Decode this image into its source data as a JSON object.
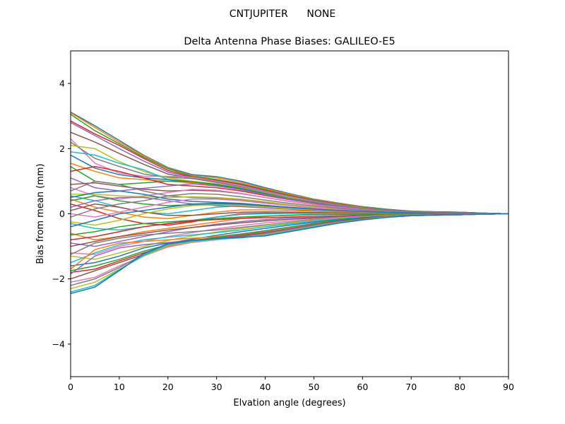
{
  "chart_data": {
    "type": "line",
    "suptitle": "CNTJUPITER      NONE",
    "title": "Delta Antenna Phase Biases: GALILEO-E5",
    "xlabel": "Elvation angle (degrees)",
    "ylabel": "Bias from mean (mm)",
    "xlim": [
      0,
      90
    ],
    "ylim": [
      -5,
      5
    ],
    "xticks": [
      0,
      10,
      20,
      30,
      40,
      50,
      60,
      70,
      80,
      90
    ],
    "yticks": [
      -4,
      -2,
      0,
      2,
      4
    ],
    "grid": false,
    "legend": "none",
    "x": [
      0,
      5,
      10,
      15,
      20,
      25,
      30,
      35,
      40,
      45,
      50,
      55,
      60,
      65,
      70,
      75,
      80,
      85,
      90
    ],
    "colors": [
      "#1f77b4",
      "#ff7f0e",
      "#2ca02c",
      "#d62728",
      "#9467bd",
      "#8c564b",
      "#e377c2",
      "#7f7f7f",
      "#bcbd22",
      "#17becf"
    ],
    "series": [
      {
        "values": [
          3.12,
          2.7,
          2.25,
          1.8,
          1.42,
          1.2,
          1.14,
          1.0,
          0.8,
          0.62,
          0.45,
          0.33,
          0.22,
          0.14,
          0.08,
          0.06,
          0.05,
          0.02,
          0.0
        ]
      },
      {
        "values": [
          3.1,
          2.65,
          2.2,
          1.78,
          1.4,
          1.17,
          1.1,
          0.96,
          0.77,
          0.6,
          0.44,
          0.32,
          0.21,
          0.13,
          0.08,
          0.06,
          0.05,
          0.02,
          0.0
        ]
      },
      {
        "values": [
          3.05,
          2.55,
          2.15,
          1.74,
          1.38,
          1.15,
          1.05,
          0.92,
          0.74,
          0.57,
          0.42,
          0.3,
          0.2,
          0.13,
          0.08,
          0.06,
          0.05,
          0.02,
          0.0
        ]
      },
      {
        "values": [
          2.85,
          2.45,
          2.1,
          1.7,
          1.33,
          1.12,
          1.02,
          0.9,
          0.72,
          0.55,
          0.41,
          0.29,
          0.19,
          0.12,
          0.07,
          0.06,
          0.04,
          0.02,
          0.0
        ]
      },
      {
        "values": [
          2.8,
          2.4,
          2.0,
          1.62,
          1.28,
          1.1,
          1.0,
          0.88,
          0.7,
          0.54,
          0.4,
          0.28,
          0.18,
          0.12,
          0.07,
          0.05,
          0.04,
          0.02,
          0.0
        ]
      },
      {
        "values": [
          2.5,
          2.2,
          1.85,
          1.52,
          1.22,
          1.08,
          0.98,
          0.85,
          0.68,
          0.52,
          0.38,
          0.27,
          0.18,
          0.11,
          0.07,
          0.05,
          0.04,
          0.02,
          0.0
        ]
      },
      {
        "values": [
          2.3,
          1.55,
          1.25,
          1.15,
          1.15,
          1.12,
          1.0,
          0.86,
          0.68,
          0.52,
          0.38,
          0.27,
          0.18,
          0.11,
          0.07,
          0.05,
          0.04,
          0.02,
          0.0
        ]
      },
      {
        "values": [
          2.2,
          1.7,
          1.45,
          1.22,
          1.12,
          1.08,
          0.96,
          0.83,
          0.66,
          0.5,
          0.37,
          0.26,
          0.17,
          0.11,
          0.07,
          0.05,
          0.04,
          0.02,
          0.0
        ]
      },
      {
        "values": [
          2.1,
          2.0,
          1.6,
          1.3,
          1.1,
          1.0,
          0.92,
          0.8,
          0.64,
          0.49,
          0.36,
          0.25,
          0.17,
          0.1,
          0.06,
          0.05,
          0.04,
          0.02,
          0.0
        ]
      },
      {
        "values": [
          1.9,
          1.8,
          1.55,
          1.35,
          1.05,
          0.95,
          0.88,
          0.77,
          0.62,
          0.47,
          0.35,
          0.25,
          0.16,
          0.1,
          0.06,
          0.05,
          0.04,
          0.02,
          0.0
        ]
      },
      {
        "values": [
          1.8,
          1.4,
          1.2,
          1.1,
          1.05,
          0.98,
          0.9,
          0.78,
          0.62,
          0.47,
          0.35,
          0.24,
          0.16,
          0.1,
          0.06,
          0.05,
          0.04,
          0.02,
          0.0
        ]
      },
      {
        "values": [
          1.55,
          1.3,
          1.1,
          1.05,
          1.0,
          0.95,
          0.86,
          0.75,
          0.6,
          0.46,
          0.34,
          0.24,
          0.16,
          0.1,
          0.06,
          0.05,
          0.04,
          0.02,
          0.0
        ]
      },
      {
        "values": [
          1.45,
          1.0,
          0.9,
          0.95,
          1.0,
          0.98,
          0.88,
          0.76,
          0.6,
          0.46,
          0.34,
          0.24,
          0.16,
          0.1,
          0.06,
          0.05,
          0.04,
          0.02,
          0.0
        ]
      },
      {
        "values": [
          1.3,
          1.45,
          1.3,
          1.1,
          0.9,
          0.85,
          0.8,
          0.7,
          0.56,
          0.43,
          0.32,
          0.22,
          0.15,
          0.09,
          0.06,
          0.05,
          0.04,
          0.02,
          0.0
        ]
      },
      {
        "values": [
          1.1,
          0.8,
          0.7,
          0.78,
          0.85,
          0.92,
          0.85,
          0.74,
          0.58,
          0.44,
          0.33,
          0.23,
          0.15,
          0.09,
          0.06,
          0.05,
          0.04,
          0.02,
          0.0
        ]
      },
      {
        "values": [
          0.9,
          0.95,
          0.85,
          0.75,
          0.7,
          0.72,
          0.7,
          0.62,
          0.5,
          0.38,
          0.28,
          0.2,
          0.13,
          0.08,
          0.05,
          0.04,
          0.03,
          0.02,
          0.0
        ]
      },
      {
        "values": [
          0.8,
          0.55,
          0.45,
          0.55,
          0.65,
          0.75,
          0.72,
          0.63,
          0.5,
          0.38,
          0.28,
          0.2,
          0.13,
          0.08,
          0.05,
          0.04,
          0.03,
          0.02,
          0.0
        ]
      },
      {
        "values": [
          0.7,
          1.0,
          0.9,
          0.7,
          0.55,
          0.5,
          0.48,
          0.43,
          0.35,
          0.27,
          0.2,
          0.14,
          0.1,
          0.06,
          0.04,
          0.04,
          0.03,
          0.02,
          0.0
        ]
      },
      {
        "values": [
          0.6,
          0.6,
          0.55,
          0.52,
          0.5,
          0.52,
          0.5,
          0.45,
          0.37,
          0.28,
          0.21,
          0.15,
          0.1,
          0.06,
          0.04,
          0.04,
          0.03,
          0.02,
          0.0
        ]
      },
      {
        "values": [
          0.55,
          0.4,
          0.2,
          0.05,
          0.0,
          0.1,
          0.2,
          0.25,
          0.22,
          0.18,
          0.14,
          0.1,
          0.07,
          0.05,
          0.03,
          0.03,
          0.03,
          0.02,
          0.0
        ]
      },
      {
        "values": [
          0.5,
          0.65,
          0.7,
          0.6,
          0.45,
          0.38,
          0.35,
          0.32,
          0.26,
          0.2,
          0.15,
          0.11,
          0.07,
          0.05,
          0.03,
          0.03,
          0.03,
          0.02,
          0.0
        ]
      },
      {
        "values": [
          0.45,
          0.2,
          0.05,
          -0.1,
          -0.15,
          -0.05,
          0.05,
          0.12,
          0.12,
          0.1,
          0.08,
          0.06,
          0.04,
          0.03,
          0.02,
          0.02,
          0.02,
          0.01,
          0.0
        ]
      },
      {
        "values": [
          0.4,
          0.55,
          0.4,
          0.3,
          0.25,
          0.28,
          0.3,
          0.28,
          0.23,
          0.18,
          0.13,
          0.1,
          0.06,
          0.04,
          0.03,
          0.03,
          0.02,
          0.01,
          0.0
        ]
      },
      {
        "values": [
          0.3,
          0.1,
          -0.15,
          -0.3,
          -0.35,
          -0.25,
          -0.1,
          0.0,
          0.02,
          0.02,
          0.02,
          0.02,
          0.01,
          0.01,
          0.01,
          0.01,
          0.01,
          0.01,
          0.0
        ]
      },
      {
        "values": [
          0.2,
          0.4,
          0.5,
          0.5,
          0.4,
          0.3,
          0.25,
          0.22,
          0.18,
          0.14,
          0.1,
          0.08,
          0.05,
          0.03,
          0.02,
          0.02,
          0.02,
          0.01,
          0.0
        ]
      },
      {
        "values": [
          0.1,
          0.3,
          0.2,
          0.05,
          -0.05,
          -0.05,
          0.0,
          0.05,
          0.06,
          0.05,
          0.04,
          0.03,
          0.02,
          0.02,
          0.01,
          0.01,
          0.01,
          0.01,
          0.0
        ]
      },
      {
        "values": [
          0.0,
          -0.1,
          0.05,
          0.2,
          0.35,
          0.45,
          0.45,
          0.4,
          0.32,
          0.25,
          0.18,
          0.13,
          0.09,
          0.05,
          0.03,
          0.03,
          0.02,
          0.01,
          0.0
        ]
      },
      {
        "values": [
          -0.1,
          0.15,
          0.3,
          0.4,
          0.55,
          0.62,
          0.6,
          0.52,
          0.42,
          0.32,
          0.24,
          0.17,
          0.11,
          0.07,
          0.04,
          0.04,
          0.03,
          0.02,
          0.0
        ]
      },
      {
        "values": [
          -0.25,
          -0.35,
          -0.2,
          0.0,
          0.15,
          0.25,
          0.28,
          0.26,
          0.21,
          0.16,
          0.12,
          0.09,
          0.06,
          0.04,
          0.02,
          0.02,
          0.02,
          0.01,
          0.0
        ]
      },
      {
        "values": [
          -0.3,
          -0.45,
          -0.5,
          -0.4,
          -0.3,
          -0.2,
          -0.1,
          -0.02,
          0.0,
          0.01,
          0.01,
          0.01,
          0.01,
          0.01,
          0.01,
          0.01,
          0.01,
          0.01,
          0.0
        ]
      },
      {
        "values": [
          -0.4,
          -0.2,
          0.0,
          0.1,
          0.2,
          0.3,
          0.32,
          0.3,
          0.25,
          0.19,
          0.14,
          0.1,
          0.07,
          0.04,
          0.03,
          0.02,
          0.02,
          0.01,
          0.0
        ]
      },
      {
        "values": [
          -0.6,
          -0.8,
          -0.7,
          -0.55,
          -0.45,
          -0.35,
          -0.25,
          -0.15,
          -0.08,
          -0.04,
          -0.02,
          -0.01,
          -0.01,
          0.0,
          0.0,
          0.0,
          0.0,
          0.0,
          0.0
        ]
      },
      {
        "values": [
          -0.65,
          -0.55,
          -0.4,
          -0.3,
          -0.25,
          -0.2,
          -0.15,
          -0.1,
          -0.07,
          -0.05,
          -0.03,
          -0.02,
          -0.01,
          -0.01,
          0.0,
          0.0,
          0.0,
          0.0,
          0.0
        ]
      },
      {
        "values": [
          -0.8,
          -0.7,
          -0.55,
          -0.4,
          -0.3,
          -0.22,
          -0.18,
          -0.14,
          -0.12,
          -0.1,
          -0.08,
          -0.06,
          -0.04,
          -0.03,
          -0.02,
          -0.01,
          -0.01,
          0.0,
          0.0
        ]
      },
      {
        "values": [
          -0.9,
          -1.0,
          -0.85,
          -0.7,
          -0.55,
          -0.42,
          -0.32,
          -0.24,
          -0.18,
          -0.13,
          -0.1,
          -0.07,
          -0.05,
          -0.03,
          -0.02,
          -0.01,
          -0.01,
          0.0,
          0.0
        ]
      },
      {
        "values": [
          -1.0,
          -0.85,
          -0.7,
          -0.6,
          -0.5,
          -0.42,
          -0.35,
          -0.28,
          -0.22,
          -0.17,
          -0.13,
          -0.09,
          -0.06,
          -0.04,
          -0.03,
          -0.02,
          -0.01,
          0.0,
          0.0
        ]
      },
      {
        "values": [
          -1.2,
          -1.25,
          -1.0,
          -0.85,
          -0.7,
          -0.58,
          -0.46,
          -0.36,
          -0.28,
          -0.22,
          -0.16,
          -0.12,
          -0.08,
          -0.05,
          -0.03,
          -0.02,
          -0.01,
          0.0,
          0.0
        ]
      },
      {
        "values": [
          -1.25,
          -0.9,
          -0.75,
          -0.65,
          -0.6,
          -0.55,
          -0.5,
          -0.42,
          -0.34,
          -0.26,
          -0.19,
          -0.14,
          -0.09,
          -0.06,
          -0.04,
          -0.03,
          -0.02,
          -0.01,
          0.0
        ]
      },
      {
        "values": [
          -1.3,
          -1.4,
          -1.2,
          -1.0,
          -0.82,
          -0.68,
          -0.56,
          -0.45,
          -0.36,
          -0.28,
          -0.21,
          -0.15,
          -0.1,
          -0.06,
          -0.04,
          -0.03,
          -0.02,
          -0.01,
          0.0
        ]
      },
      {
        "values": [
          -1.5,
          -1.2,
          -0.95,
          -0.8,
          -0.72,
          -0.65,
          -0.58,
          -0.5,
          -0.4,
          -0.31,
          -0.23,
          -0.16,
          -0.11,
          -0.07,
          -0.04,
          -0.03,
          -0.02,
          -0.01,
          0.0
        ]
      },
      {
        "values": [
          -1.6,
          -1.5,
          -1.3,
          -1.05,
          -0.9,
          -0.78,
          -0.66,
          -0.55,
          -0.45,
          -0.35,
          -0.26,
          -0.18,
          -0.12,
          -0.07,
          -0.04,
          -0.03,
          -0.02,
          -0.01,
          0.0
        ]
      },
      {
        "values": [
          -1.7,
          -1.1,
          -0.9,
          -0.85,
          -0.8,
          -0.75,
          -0.7,
          -0.62,
          -0.52,
          -0.41,
          -0.3,
          -0.21,
          -0.14,
          -0.08,
          -0.05,
          -0.04,
          -0.03,
          -0.01,
          0.0
        ]
      },
      {
        "values": [
          -1.75,
          -1.6,
          -1.4,
          -1.15,
          -0.95,
          -0.82,
          -0.72,
          -0.62,
          -0.52,
          -0.41,
          -0.3,
          -0.21,
          -0.14,
          -0.08,
          -0.05,
          -0.04,
          -0.03,
          -0.01,
          0.0
        ]
      },
      {
        "values": [
          -1.8,
          -1.7,
          -1.45,
          -1.2,
          -0.98,
          -0.85,
          -0.75,
          -0.66,
          -0.56,
          -0.45,
          -0.33,
          -0.23,
          -0.15,
          -0.09,
          -0.05,
          -0.04,
          -0.03,
          -0.01,
          0.0
        ]
      },
      {
        "values": [
          -1.85,
          -1.3,
          -1.05,
          -0.95,
          -0.88,
          -0.82,
          -0.76,
          -0.68,
          -0.58,
          -0.46,
          -0.34,
          -0.24,
          -0.16,
          -0.09,
          -0.05,
          -0.04,
          -0.03,
          -0.01,
          0.0
        ]
      },
      {
        "values": [
          -2.0,
          -1.75,
          -1.5,
          -1.25,
          -1.0,
          -0.87,
          -0.78,
          -0.7,
          -0.6,
          -0.48,
          -0.36,
          -0.25,
          -0.16,
          -0.1,
          -0.06,
          -0.04,
          -0.03,
          -0.01,
          0.0
        ]
      },
      {
        "values": [
          -2.1,
          -1.95,
          -1.6,
          -1.3,
          -1.02,
          -0.88,
          -0.8,
          -0.72,
          -0.62,
          -0.5,
          -0.37,
          -0.26,
          -0.17,
          -0.1,
          -0.06,
          -0.04,
          -0.03,
          -0.01,
          0.0
        ]
      },
      {
        "values": [
          -2.2,
          -2.0,
          -1.65,
          -1.25,
          -0.95,
          -0.85,
          -0.78,
          -0.72,
          -0.63,
          -0.51,
          -0.38,
          -0.27,
          -0.17,
          -0.1,
          -0.06,
          -0.04,
          -0.03,
          -0.01,
          0.0
        ]
      },
      {
        "values": [
          -2.3,
          -2.1,
          -1.7,
          -1.3,
          -0.98,
          -0.86,
          -0.79,
          -0.73,
          -0.64,
          -0.52,
          -0.39,
          -0.27,
          -0.18,
          -0.1,
          -0.06,
          -0.04,
          -0.03,
          -0.01,
          0.0
        ]
      },
      {
        "values": [
          -2.4,
          -2.2,
          -1.72,
          -1.28,
          -0.94,
          -0.84,
          -0.78,
          -0.74,
          -0.66,
          -0.53,
          -0.4,
          -0.28,
          -0.18,
          -0.11,
          -0.06,
          -0.04,
          -0.03,
          -0.01,
          0.0
        ]
      },
      {
        "values": [
          -2.45,
          -2.25,
          -1.75,
          -1.22,
          -0.92,
          -0.82,
          -0.76,
          -0.72,
          -0.68,
          -0.55,
          -0.42,
          -0.29,
          -0.19,
          -0.11,
          -0.06,
          -0.04,
          -0.03,
          -0.01,
          0.0
        ]
      }
    ]
  }
}
